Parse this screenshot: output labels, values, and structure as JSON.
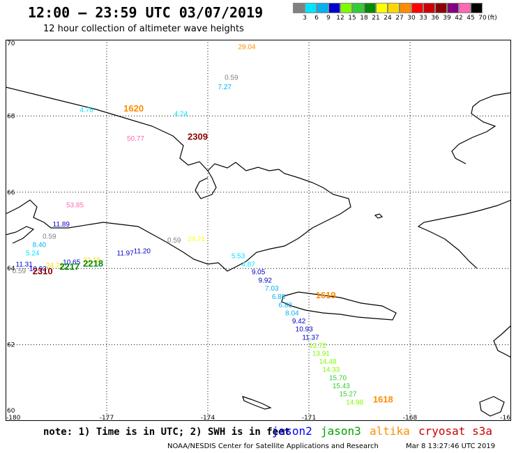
{
  "header": {
    "title": "12:00 — 23:59 UTC 03/07/2019",
    "subtitle": "12 hour collection of altimeter wave heights"
  },
  "legend": {
    "unit": "(ft)",
    "items": [
      {
        "label": "3",
        "color": "#808080"
      },
      {
        "label": "6",
        "color": "#00e5ff"
      },
      {
        "label": "9",
        "color": "#00b2ee"
      },
      {
        "label": "12",
        "color": "#0000cd"
      },
      {
        "label": "15",
        "color": "#7cfc00"
      },
      {
        "label": "18",
        "color": "#32cd32"
      },
      {
        "label": "21",
        "color": "#008b00"
      },
      {
        "label": "24",
        "color": "#ffff00"
      },
      {
        "label": "27",
        "color": "#ffd700"
      },
      {
        "label": "30",
        "color": "#ff8c00"
      },
      {
        "label": "33",
        "color": "#ff0000"
      },
      {
        "label": "36",
        "color": "#cd0000"
      },
      {
        "label": "39",
        "color": "#8b0000"
      },
      {
        "label": "42",
        "color": "#800080"
      },
      {
        "label": "45",
        "color": "#ff69b4"
      },
      {
        "label": "70",
        "color": "#000000"
      }
    ]
  },
  "map": {
    "lon_range": [
      -180,
      -165
    ],
    "lat_range": [
      60,
      70
    ],
    "x_ticks": [
      "-180",
      "-177",
      "-174",
      "-171",
      "-168",
      "-16"
    ],
    "y_ticks": [
      "70",
      "68",
      "66",
      "64",
      "62",
      "60"
    ],
    "observations": [
      {
        "text": "29.04",
        "lon": -173.1,
        "lat": 69.75,
        "color": "#ff8c00"
      },
      {
        "text": "0.59",
        "lon": -173.5,
        "lat": 68.95,
        "color": "#808080"
      },
      {
        "text": "7.27",
        "lon": -173.7,
        "lat": 68.7,
        "color": "#00b2ee"
      },
      {
        "text": "4.76",
        "lon": -177.8,
        "lat": 68.1,
        "color": "#00e5ff"
      },
      {
        "text": "4.24",
        "lon": -175.0,
        "lat": 68.0,
        "color": "#00e5ff"
      },
      {
        "text": "50.77",
        "lon": -176.4,
        "lat": 67.35,
        "color": "#ff69b4"
      },
      {
        "text": "53.85",
        "lon": -178.2,
        "lat": 65.6,
        "color": "#ff69b4"
      },
      {
        "text": "11.89",
        "lon": -178.6,
        "lat": 65.1,
        "color": "#0000cd"
      },
      {
        "text": "0.59",
        "lon": -178.9,
        "lat": 64.78,
        "color": "#808080"
      },
      {
        "text": "8.40",
        "lon": -179.2,
        "lat": 64.56,
        "color": "#00b2ee"
      },
      {
        "text": "5.24",
        "lon": -179.4,
        "lat": 64.34,
        "color": "#00e5ff"
      },
      {
        "text": "11.97",
        "lon": -176.7,
        "lat": 64.34,
        "color": "#0000cd"
      },
      {
        "text": "11.20",
        "lon": -176.2,
        "lat": 64.4,
        "color": "#0000cd"
      },
      {
        "text": "0.59",
        "lon": -175.2,
        "lat": 64.68,
        "color": "#808080"
      },
      {
        "text": "24.71",
        "lon": -174.6,
        "lat": 64.72,
        "color": "#ffff00"
      },
      {
        "text": "11.31",
        "lon": -179.7,
        "lat": 64.05,
        "color": "#0000cd"
      },
      {
        "text": "10.65",
        "lon": -178.3,
        "lat": 64.1,
        "color": "#0000cd"
      },
      {
        "text": "22.18",
        "lon": -177.7,
        "lat": 64.16,
        "color": "#ffd700"
      },
      {
        "text": "0.59",
        "lon": -179.8,
        "lat": 63.88,
        "color": "#808080"
      },
      {
        "text": "10.93",
        "lon": -179.3,
        "lat": 63.93,
        "color": "#0000cd"
      },
      {
        "text": "24.71",
        "lon": -178.8,
        "lat": 64.02,
        "color": "#ffd700"
      },
      {
        "text": "5.53",
        "lon": -173.3,
        "lat": 64.27,
        "color": "#00e5ff"
      },
      {
        "text": "4.87",
        "lon": -173.0,
        "lat": 64.05,
        "color": "#00e5ff"
      },
      {
        "text": "9.05",
        "lon": -172.7,
        "lat": 63.85,
        "color": "#0000cd"
      },
      {
        "text": "9.92",
        "lon": -172.5,
        "lat": 63.63,
        "color": "#0000cd"
      },
      {
        "text": "7.03",
        "lon": -172.3,
        "lat": 63.42,
        "color": "#00b2ee"
      },
      {
        "text": "6.85",
        "lon": -172.1,
        "lat": 63.2,
        "color": "#00b2ee"
      },
      {
        "text": "6.83",
        "lon": -171.9,
        "lat": 62.98,
        "color": "#00b2ee"
      },
      {
        "text": "8.04",
        "lon": -171.7,
        "lat": 62.77,
        "color": "#00b2ee"
      },
      {
        "text": "9.42",
        "lon": -171.5,
        "lat": 62.56,
        "color": "#0000cd"
      },
      {
        "text": "10.93",
        "lon": -171.4,
        "lat": 62.35,
        "color": "#0000cd"
      },
      {
        "text": "11.37",
        "lon": -171.2,
        "lat": 62.13,
        "color": "#0000cd"
      },
      {
        "text": "13.72",
        "lon": -171.0,
        "lat": 61.92,
        "color": "#7cfc00"
      },
      {
        "text": "13.91",
        "lon": -170.9,
        "lat": 61.71,
        "color": "#7cfc00"
      },
      {
        "text": "14.48",
        "lon": -170.7,
        "lat": 61.5,
        "color": "#7cfc00"
      },
      {
        "text": "14.33",
        "lon": -170.6,
        "lat": 61.29,
        "color": "#7cfc00"
      },
      {
        "text": "15.70",
        "lon": -170.4,
        "lat": 61.07,
        "color": "#32cd32"
      },
      {
        "text": "15.43",
        "lon": -170.3,
        "lat": 60.86,
        "color": "#32cd32"
      },
      {
        "text": "15.27",
        "lon": -170.1,
        "lat": 60.65,
        "color": "#32cd32"
      },
      {
        "text": "14.98",
        "lon": -169.9,
        "lat": 60.43,
        "color": "#7cfc00"
      }
    ],
    "pass_labels": [
      {
        "text": "1620",
        "lon": -176.5,
        "lat": 68.12,
        "color": "#ff8c00"
      },
      {
        "text": "2309",
        "lon": -174.6,
        "lat": 67.38,
        "color": "#8b0000"
      },
      {
        "text": "1619",
        "lon": -170.8,
        "lat": 63.22,
        "color": "#ff8c00"
      },
      {
        "text": "1618",
        "lon": -169.1,
        "lat": 60.48,
        "color": "#ff8c00"
      },
      {
        "text": "2218",
        "lon": -177.7,
        "lat": 64.05,
        "color": "#008b00"
      },
      {
        "text": "2217",
        "lon": -178.4,
        "lat": 63.97,
        "color": "#008b00"
      },
      {
        "text": "2310",
        "lon": -179.2,
        "lat": 63.85,
        "color": "#8b0000"
      }
    ]
  },
  "footer": {
    "note": "note: 1) Time is in UTC; 2) SWH is in feet",
    "satellites": [
      {
        "name": "jason2",
        "color": "#0000ff"
      },
      {
        "name": "jason3",
        "color": "#00a000"
      },
      {
        "name": "altika",
        "color": "#ff8c00"
      },
      {
        "name": "cryosat s3a",
        "color": "#cc0000"
      }
    ],
    "credit": "NOAA/NESDIS Center for Satellite Applications and Research",
    "timestamp": "Mar  8 13:27:46 UTC 2019"
  }
}
